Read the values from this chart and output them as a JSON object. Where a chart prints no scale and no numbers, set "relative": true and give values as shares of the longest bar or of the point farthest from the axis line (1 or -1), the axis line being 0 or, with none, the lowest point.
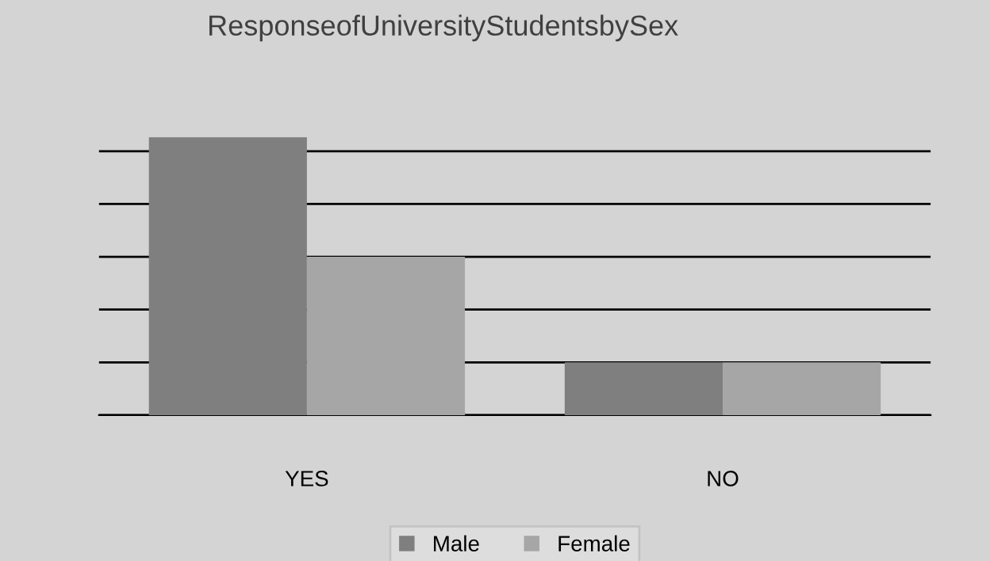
{
  "chart_data": {
    "type": "bar",
    "title": "ResponseofUniversityStudentsbySex",
    "categories": [
      "YES",
      "NO"
    ],
    "relative": true,
    "series": [
      {
        "name": "Male",
        "color": "#7f7f7f",
        "values": [
          1,
          0.19
        ]
      },
      {
        "name": "Female",
        "color": "#a6a6a6",
        "values": [
          0.57,
          0.19
        ]
      }
    ],
    "grid": "y",
    "legend": "bottom"
  }
}
